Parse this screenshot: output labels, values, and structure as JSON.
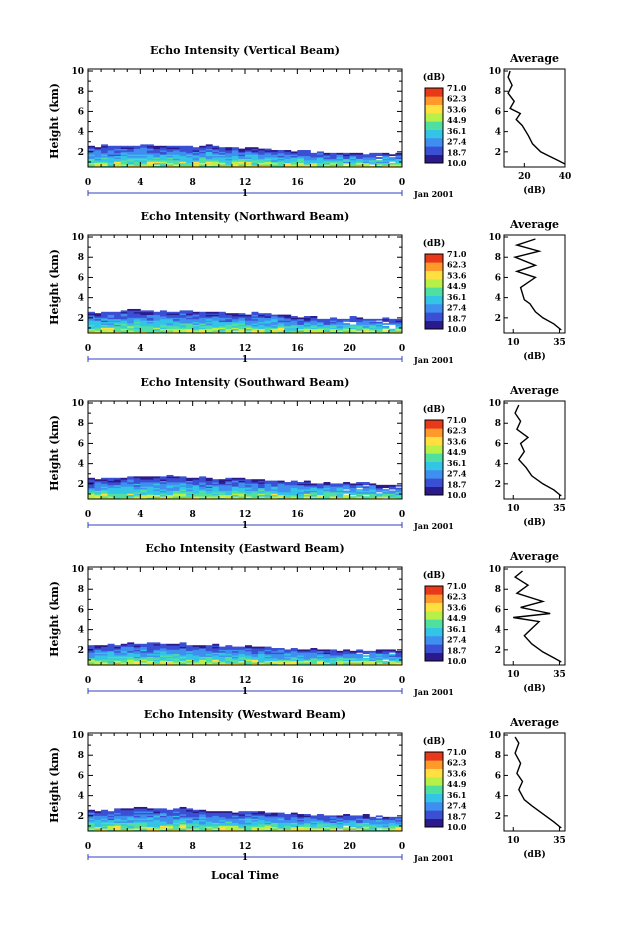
{
  "figure": {
    "xlabel": "Local Time",
    "date_label": "Jan 2001",
    "day_label": "1",
    "colorbar_unit": "(dB)",
    "colorbar_ticks": [
      "71.0",
      "62.3",
      "53.6",
      "44.9",
      "36.1",
      "27.4",
      "18.7",
      "10.0"
    ],
    "colors": [
      "#2b1a8c",
      "#3b4fd4",
      "#3f8ff0",
      "#33c4e6",
      "#4fe0a0",
      "#b8f04a",
      "#ffe040",
      "#ff9a2a",
      "#e83a1a"
    ]
  },
  "chart_data": [
    {
      "type": "heatmap",
      "title": "Echo Intensity (Vertical Beam)",
      "ylabel": "Height (km)",
      "x_ticks": [
        "0",
        "4",
        "8",
        "12",
        "16",
        "20",
        "0"
      ],
      "y_ticks": [
        "2",
        "4",
        "6",
        "8",
        "10"
      ],
      "xlim": [
        0,
        24
      ],
      "ylim": [
        0.5,
        10.2
      ],
      "echo_top_km": [
        [
          0,
          2.5
        ],
        [
          3,
          2.6
        ],
        [
          6,
          2.6
        ],
        [
          9,
          2.5
        ],
        [
          12,
          2.3
        ],
        [
          15,
          2.1
        ],
        [
          18,
          1.9
        ],
        [
          21,
          1.8
        ],
        [
          24,
          1.7
        ]
      ],
      "profile": {
        "title": "Average",
        "xlabel": "(dB)",
        "x_ticks": [
          "20",
          "40"
        ],
        "xlim": [
          10,
          40
        ],
        "y_ticks": [
          "2",
          "4",
          "6",
          "8",
          "10"
        ],
        "points": [
          [
            40,
            0.8
          ],
          [
            36,
            1.2
          ],
          [
            32,
            1.6
          ],
          [
            28,
            2.0
          ],
          [
            24,
            2.8
          ],
          [
            22,
            3.6
          ],
          [
            19,
            4.6
          ],
          [
            16,
            5.2
          ],
          [
            18,
            5.8
          ],
          [
            13,
            6.3
          ],
          [
            15,
            7.0
          ],
          [
            12,
            7.8
          ],
          [
            14,
            8.6
          ],
          [
            12,
            9.4
          ],
          [
            13,
            10.0
          ]
        ]
      }
    },
    {
      "type": "heatmap",
      "title": "Echo Intensity (Northward Beam)",
      "ylabel": "Height (km)",
      "x_ticks": [
        "0",
        "4",
        "8",
        "12",
        "16",
        "20",
        "0"
      ],
      "y_ticks": [
        "2",
        "4",
        "6",
        "8",
        "10"
      ],
      "xlim": [
        0,
        24
      ],
      "ylim": [
        0.5,
        10.2
      ],
      "echo_top_km": [
        [
          0,
          2.4
        ],
        [
          3,
          2.7
        ],
        [
          6,
          2.6
        ],
        [
          9,
          2.5
        ],
        [
          12,
          2.4
        ],
        [
          15,
          2.2
        ],
        [
          18,
          1.9
        ],
        [
          21,
          2.0
        ],
        [
          24,
          1.8
        ]
      ],
      "profile": {
        "title": "Average",
        "xlabel": "(dB)",
        "x_ticks": [
          "10",
          "35"
        ],
        "xlim": [
          5,
          38
        ],
        "y_ticks": [
          "2",
          "4",
          "6",
          "8",
          "10"
        ],
        "points": [
          [
            36,
            0.8
          ],
          [
            32,
            1.4
          ],
          [
            26,
            2.0
          ],
          [
            22,
            2.6
          ],
          [
            19,
            3.4
          ],
          [
            16,
            3.8
          ],
          [
            14,
            5.0
          ],
          [
            22,
            6.0
          ],
          [
            12,
            6.6
          ],
          [
            22,
            7.2
          ],
          [
            11,
            8.0
          ],
          [
            24,
            8.6
          ],
          [
            12,
            9.2
          ],
          [
            22,
            9.8
          ]
        ]
      }
    },
    {
      "type": "heatmap",
      "title": "Echo Intensity (Southward Beam)",
      "ylabel": "Height (km)",
      "x_ticks": [
        "0",
        "4",
        "8",
        "12",
        "16",
        "20",
        "0"
      ],
      "y_ticks": [
        "2",
        "4",
        "6",
        "8",
        "10"
      ],
      "xlim": [
        0,
        24
      ],
      "ylim": [
        0.5,
        10.2
      ],
      "echo_top_km": [
        [
          0,
          2.4
        ],
        [
          3,
          2.6
        ],
        [
          6,
          2.7
        ],
        [
          9,
          2.5
        ],
        [
          12,
          2.4
        ],
        [
          15,
          2.2
        ],
        [
          18,
          2.0
        ],
        [
          21,
          2.0
        ],
        [
          24,
          1.8
        ]
      ],
      "profile": {
        "title": "Average",
        "xlabel": "(dB)",
        "x_ticks": [
          "10",
          "35"
        ],
        "xlim": [
          5,
          38
        ],
        "y_ticks": [
          "2",
          "4",
          "6",
          "8",
          "10"
        ],
        "points": [
          [
            36,
            0.8
          ],
          [
            32,
            1.4
          ],
          [
            26,
            2.0
          ],
          [
            20,
            2.8
          ],
          [
            17,
            3.6
          ],
          [
            13,
            4.4
          ],
          [
            16,
            5.2
          ],
          [
            14,
            6.0
          ],
          [
            18,
            6.6
          ],
          [
            12,
            7.4
          ],
          [
            14,
            8.2
          ],
          [
            11,
            9.0
          ],
          [
            13,
            9.8
          ]
        ]
      }
    },
    {
      "type": "heatmap",
      "title": "Echo Intensity (Eastward Beam)",
      "ylabel": "Height (km)",
      "x_ticks": [
        "0",
        "4",
        "8",
        "12",
        "16",
        "20",
        "0"
      ],
      "y_ticks": [
        "2",
        "4",
        "6",
        "8",
        "10"
      ],
      "xlim": [
        0,
        24
      ],
      "ylim": [
        0.5,
        10.2
      ],
      "echo_top_km": [
        [
          0,
          2.3
        ],
        [
          3,
          2.6
        ],
        [
          6,
          2.6
        ],
        [
          9,
          2.4
        ],
        [
          12,
          2.3
        ],
        [
          15,
          2.1
        ],
        [
          18,
          1.9
        ],
        [
          21,
          1.9
        ],
        [
          24,
          1.8
        ]
      ],
      "profile": {
        "title": "Average",
        "xlabel": "(dB)",
        "x_ticks": [
          "10",
          "35"
        ],
        "xlim": [
          5,
          38
        ],
        "y_ticks": [
          "2",
          "4",
          "6",
          "8",
          "10"
        ],
        "points": [
          [
            36,
            0.8
          ],
          [
            32,
            1.2
          ],
          [
            26,
            1.8
          ],
          [
            20,
            2.6
          ],
          [
            16,
            3.4
          ],
          [
            24,
            4.8
          ],
          [
            10,
            5.2
          ],
          [
            30,
            5.6
          ],
          [
            14,
            6.2
          ],
          [
            26,
            6.8
          ],
          [
            12,
            7.6
          ],
          [
            18,
            8.4
          ],
          [
            11,
            9.2
          ],
          [
            15,
            9.8
          ]
        ]
      }
    },
    {
      "type": "heatmap",
      "title": "Echo Intensity (Westward Beam)",
      "ylabel": "Height (km)",
      "x_ticks": [
        "0",
        "4",
        "8",
        "12",
        "16",
        "20",
        "0"
      ],
      "y_ticks": [
        "2",
        "4",
        "6",
        "8",
        "10"
      ],
      "xlim": [
        0,
        24
      ],
      "ylim": [
        0.5,
        10.2
      ],
      "echo_top_km": [
        [
          0,
          2.4
        ],
        [
          3,
          2.7
        ],
        [
          6,
          2.7
        ],
        [
          9,
          2.5
        ],
        [
          12,
          2.4
        ],
        [
          15,
          2.2
        ],
        [
          18,
          2.0
        ],
        [
          21,
          2.0
        ],
        [
          24,
          1.8
        ]
      ],
      "profile": {
        "title": "Average",
        "xlabel": "(dB)",
        "x_ticks": [
          "10",
          "35"
        ],
        "xlim": [
          5,
          38
        ],
        "y_ticks": [
          "2",
          "4",
          "6",
          "8",
          "10"
        ],
        "points": [
          [
            36,
            0.8
          ],
          [
            32,
            1.4
          ],
          [
            26,
            2.2
          ],
          [
            20,
            3.0
          ],
          [
            16,
            3.6
          ],
          [
            13,
            4.6
          ],
          [
            15,
            5.4
          ],
          [
            12,
            6.2
          ],
          [
            14,
            7.2
          ],
          [
            11,
            8.2
          ],
          [
            13,
            9.2
          ],
          [
            11,
            9.8
          ]
        ]
      }
    }
  ]
}
